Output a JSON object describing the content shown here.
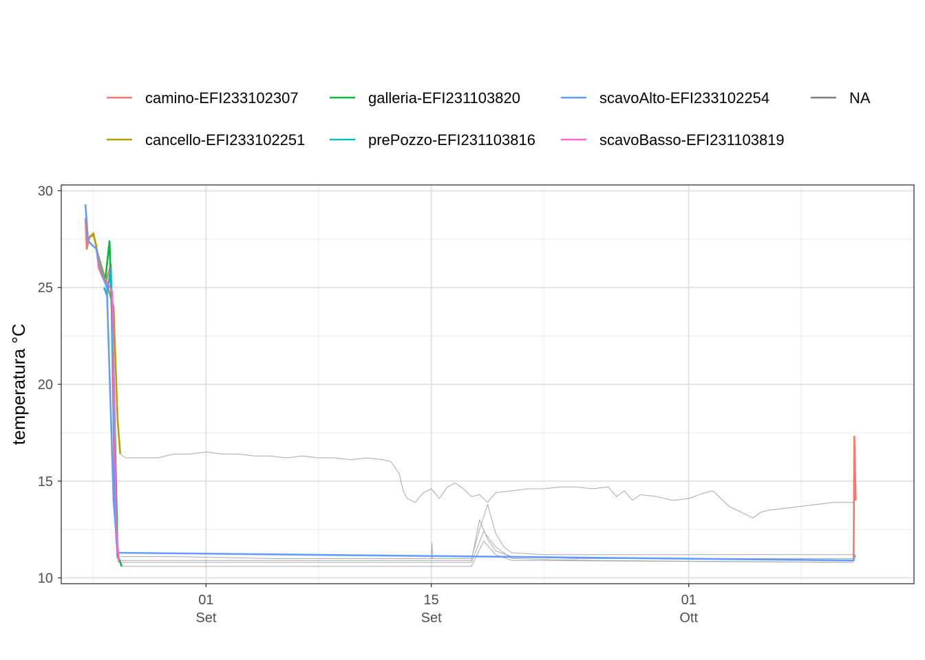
{
  "chart_data": {
    "type": "line",
    "title": "",
    "xlabel": "",
    "ylabel": "temperatura °C",
    "ylim": [
      9.7,
      30.3
    ],
    "xlim": [
      "2023-08-23",
      "2023-10-15"
    ],
    "y_ticks": [
      10,
      15,
      20,
      25,
      30
    ],
    "x_ticks": [
      {
        "date": "2023-09-01",
        "day": "01",
        "month": "Set"
      },
      {
        "date": "2023-09-15",
        "day": "15",
        "month": "Set"
      },
      {
        "date": "2023-10-01",
        "day": "01",
        "month": "Ott"
      }
    ],
    "x_minor_gridlines": [
      "2023-08-25",
      "2023-09-08",
      "2023-09-22",
      "2023-10-08"
    ],
    "grid": true,
    "legend_position": "top",
    "legend": [
      {
        "name": "camino-EFI233102307",
        "color": "#F8766D"
      },
      {
        "name": "cancello-EFI233102251",
        "color": "#B79F00"
      },
      {
        "name": "galleria-EFI231103820",
        "color": "#00BA38"
      },
      {
        "name": "prePozzo-EFI231103816",
        "color": "#00BFC4"
      },
      {
        "name": "scavoAlto-EFI233102254",
        "color": "#619CFF"
      },
      {
        "name": "scavoBasso-EFI231103819",
        "color": "#F564E3"
      },
      {
        "name": "NA",
        "color": "#7f7f7f"
      }
    ],
    "series": [
      {
        "name": "camino-EFI233102307",
        "color": "#F8766D",
        "points": [
          [
            "2023-08-24 12:00",
            28.6
          ],
          [
            "2023-08-24 14:00",
            27.0
          ],
          [
            "2023-08-24 18:00",
            27.6
          ],
          [
            "2023-08-25 00:00",
            27.7
          ],
          [
            "2023-08-25 04:00",
            27.2
          ],
          [
            "2023-08-25 08:00",
            26.0
          ],
          [
            "2023-08-25 14:00",
            25.5
          ],
          [
            "2023-08-25 18:00",
            25.2
          ],
          [
            "2023-08-26 02:00",
            26.2
          ],
          [
            "2023-08-26 08:00",
            13.5
          ],
          [
            "2023-08-26 12:00",
            11.0
          ]
        ]
      },
      {
        "name": "cancello-EFI233102251",
        "color": "#B79F00",
        "points": [
          [
            "2023-08-24 18:00",
            27.6
          ],
          [
            "2023-08-25 00:00",
            27.8
          ],
          [
            "2023-08-25 06:00",
            26.8
          ],
          [
            "2023-08-26 06:00",
            24.0
          ],
          [
            "2023-08-26 12:00",
            18.2
          ],
          [
            "2023-08-26 16:00",
            16.4
          ]
        ]
      },
      {
        "name": "galleria-EFI231103820",
        "color": "#00BA38",
        "points": [
          [
            "2023-08-25 18:00",
            25.5
          ],
          [
            "2023-08-26 00:00",
            27.4
          ],
          [
            "2023-08-26 06:00",
            21.0
          ],
          [
            "2023-08-26 12:00",
            11.2
          ],
          [
            "2023-08-26 18:00",
            10.6
          ]
        ]
      },
      {
        "name": "prePozzo-EFI231103816",
        "color": "#00BFC4",
        "points": [
          [
            "2023-08-25 16:00",
            25.0
          ],
          [
            "2023-08-25 20:00",
            24.6
          ],
          [
            "2023-08-26 02:00",
            26.0
          ],
          [
            "2023-08-26 10:00",
            12.0
          ],
          [
            "2023-08-26 14:00",
            10.9
          ]
        ]
      },
      {
        "name": "scavoAlto-EFI233102254",
        "color": "#619CFF",
        "points": [
          [
            "2023-08-24 12:00",
            29.3
          ],
          [
            "2023-08-24 16:00",
            27.4
          ],
          [
            "2023-08-25 04:00",
            27.0
          ],
          [
            "2023-08-25 12:00",
            25.8
          ],
          [
            "2023-08-25 20:00",
            25.0
          ],
          [
            "2023-08-26 06:00",
            14.0
          ],
          [
            "2023-08-26 12:00",
            11.3
          ],
          [
            "2023-10-11 06:00",
            10.9
          ],
          [
            "2023-10-11 08:00",
            11.2
          ]
        ]
      },
      {
        "name": "scavoBasso-EFI231103819",
        "color": "#F564E3",
        "points": [
          [
            "2023-08-25 20:00",
            25.3
          ],
          [
            "2023-08-26 04:00",
            24.8
          ],
          [
            "2023-08-26 10:00",
            12.5
          ],
          [
            "2023-08-26 14:00",
            10.8
          ]
        ]
      },
      {
        "name": "camino-EFI233102307",
        "color": "#F8766D",
        "points": [
          [
            "2023-10-11 06:00",
            11.0
          ],
          [
            "2023-10-11 07:00",
            17.3
          ],
          [
            "2023-10-11 08:00",
            15.8
          ],
          [
            "2023-10-11 09:00",
            14.0
          ]
        ]
      },
      {
        "name": "NA",
        "color": "#a8a8a8",
        "points": [
          [
            "2023-08-26 16:00",
            16.4
          ],
          [
            "2023-08-27 00:00",
            16.2
          ],
          [
            "2023-08-29 00:00",
            16.2
          ],
          [
            "2023-08-30 00:00",
            16.4
          ],
          [
            "2023-08-31 00:00",
            16.4
          ],
          [
            "2023-09-01 00:00",
            16.5
          ],
          [
            "2023-09-02 00:00",
            16.4
          ],
          [
            "2023-09-03 00:00",
            16.4
          ],
          [
            "2023-09-04 00:00",
            16.3
          ],
          [
            "2023-09-05 00:00",
            16.3
          ],
          [
            "2023-09-06 00:00",
            16.2
          ],
          [
            "2023-09-07 00:00",
            16.3
          ],
          [
            "2023-09-08 00:00",
            16.2
          ],
          [
            "2023-09-09 00:00",
            16.2
          ],
          [
            "2023-09-10 00:00",
            16.1
          ],
          [
            "2023-09-11 00:00",
            16.2
          ],
          [
            "2023-09-12 00:00",
            16.1
          ],
          [
            "2023-09-12 12:00",
            16.0
          ],
          [
            "2023-09-13 00:00",
            15.4
          ],
          [
            "2023-09-13 06:00",
            14.5
          ],
          [
            "2023-09-13 12:00",
            14.1
          ],
          [
            "2023-09-14 00:00",
            13.9
          ],
          [
            "2023-09-14 12:00",
            14.4
          ],
          [
            "2023-09-15 00:00",
            14.6
          ],
          [
            "2023-09-15 12:00",
            14.1
          ],
          [
            "2023-09-16 00:00",
            14.7
          ],
          [
            "2023-09-16 12:00",
            14.9
          ],
          [
            "2023-09-17 00:00",
            14.6
          ],
          [
            "2023-09-17 12:00",
            14.2
          ],
          [
            "2023-09-18 00:00",
            14.3
          ],
          [
            "2023-09-18 12:00",
            13.9
          ],
          [
            "2023-09-19 00:00",
            14.4
          ],
          [
            "2023-09-20 00:00",
            14.5
          ],
          [
            "2023-09-21 00:00",
            14.6
          ],
          [
            "2023-09-22 00:00",
            14.6
          ],
          [
            "2023-09-23 00:00",
            14.7
          ],
          [
            "2023-09-24 00:00",
            14.7
          ],
          [
            "2023-09-25 00:00",
            14.6
          ],
          [
            "2023-09-26 00:00",
            14.7
          ],
          [
            "2023-09-26 12:00",
            14.2
          ],
          [
            "2023-09-27 00:00",
            14.5
          ],
          [
            "2023-09-27 12:00",
            14.0
          ],
          [
            "2023-09-28 00:00",
            14.3
          ],
          [
            "2023-09-29 00:00",
            14.2
          ],
          [
            "2023-09-30 00:00",
            14.0
          ],
          [
            "2023-10-01 00:00",
            14.1
          ],
          [
            "2023-10-02 00:00",
            14.4
          ],
          [
            "2023-10-02 12:00",
            14.5
          ],
          [
            "2023-10-03 00:00",
            14.1
          ],
          [
            "2023-10-03 12:00",
            13.7
          ],
          [
            "2023-10-04 00:00",
            13.5
          ],
          [
            "2023-10-04 12:00",
            13.3
          ],
          [
            "2023-10-05 00:00",
            13.1
          ],
          [
            "2023-10-05 12:00",
            13.4
          ],
          [
            "2023-10-06 00:00",
            13.5
          ],
          [
            "2023-10-07 00:00",
            13.6
          ],
          [
            "2023-10-08 00:00",
            13.7
          ],
          [
            "2023-10-09 00:00",
            13.8
          ],
          [
            "2023-10-10 00:00",
            13.9
          ],
          [
            "2023-10-11 06:00",
            13.9
          ]
        ]
      },
      {
        "name": "NA",
        "color": "#a8a8a8",
        "points": [
          [
            "2023-08-26 16:00",
            11.1
          ],
          [
            "2023-08-30 00:00",
            11.1
          ],
          [
            "2023-09-05 00:00",
            11.0
          ],
          [
            "2023-09-12 00:00",
            11.0
          ],
          [
            "2023-09-17 12:00",
            11.0
          ],
          [
            "2023-09-18 00:00",
            12.5
          ],
          [
            "2023-09-18 12:00",
            13.8
          ],
          [
            "2023-09-19 00:00",
            12.3
          ],
          [
            "2023-09-19 12:00",
            11.6
          ],
          [
            "2023-09-20 00:00",
            11.3
          ],
          [
            "2023-09-22 00:00",
            11.2
          ],
          [
            "2023-10-11 06:00",
            11.2
          ]
        ]
      },
      {
        "name": "NA",
        "color": "#a8a8a8",
        "points": [
          [
            "2023-08-26 16:00",
            10.9
          ],
          [
            "2023-09-17 12:00",
            10.9
          ],
          [
            "2023-09-18 00:00",
            13.0
          ],
          [
            "2023-09-18 12:00",
            12.0
          ],
          [
            "2023-09-19 00:00",
            11.4
          ],
          [
            "2023-09-20 00:00",
            11.1
          ],
          [
            "2023-09-24 00:00",
            11.0
          ],
          [
            "2023-10-11 06:00",
            11.0
          ]
        ]
      },
      {
        "name": "NA",
        "color": "#a8a8a8",
        "points": [
          [
            "2023-08-26 16:00",
            10.8
          ],
          [
            "2023-09-17 12:00",
            10.8
          ],
          [
            "2023-09-18 06:00",
            12.4
          ],
          [
            "2023-09-19 00:00",
            11.6
          ],
          [
            "2023-09-20 00:00",
            11.0
          ],
          [
            "2023-09-25 00:00",
            10.9
          ],
          [
            "2023-10-11 06:00",
            10.8
          ]
        ]
      },
      {
        "name": "NA",
        "color": "#a8a8a8",
        "points": [
          [
            "2023-08-26 16:00",
            10.6
          ],
          [
            "2023-09-17 12:00",
            10.6
          ],
          [
            "2023-09-18 06:00",
            11.9
          ],
          [
            "2023-09-19 00:00",
            11.2
          ],
          [
            "2023-09-20 00:00",
            10.9
          ],
          [
            "2023-10-11 06:00",
            10.8
          ]
        ]
      },
      {
        "name": "NA",
        "color": "#a8a8a8",
        "points": [
          [
            "2023-09-15 00:00",
            11.0
          ],
          [
            "2023-09-15 01:00",
            11.8
          ],
          [
            "2023-09-15 02:00",
            11.0
          ]
        ]
      }
    ]
  }
}
